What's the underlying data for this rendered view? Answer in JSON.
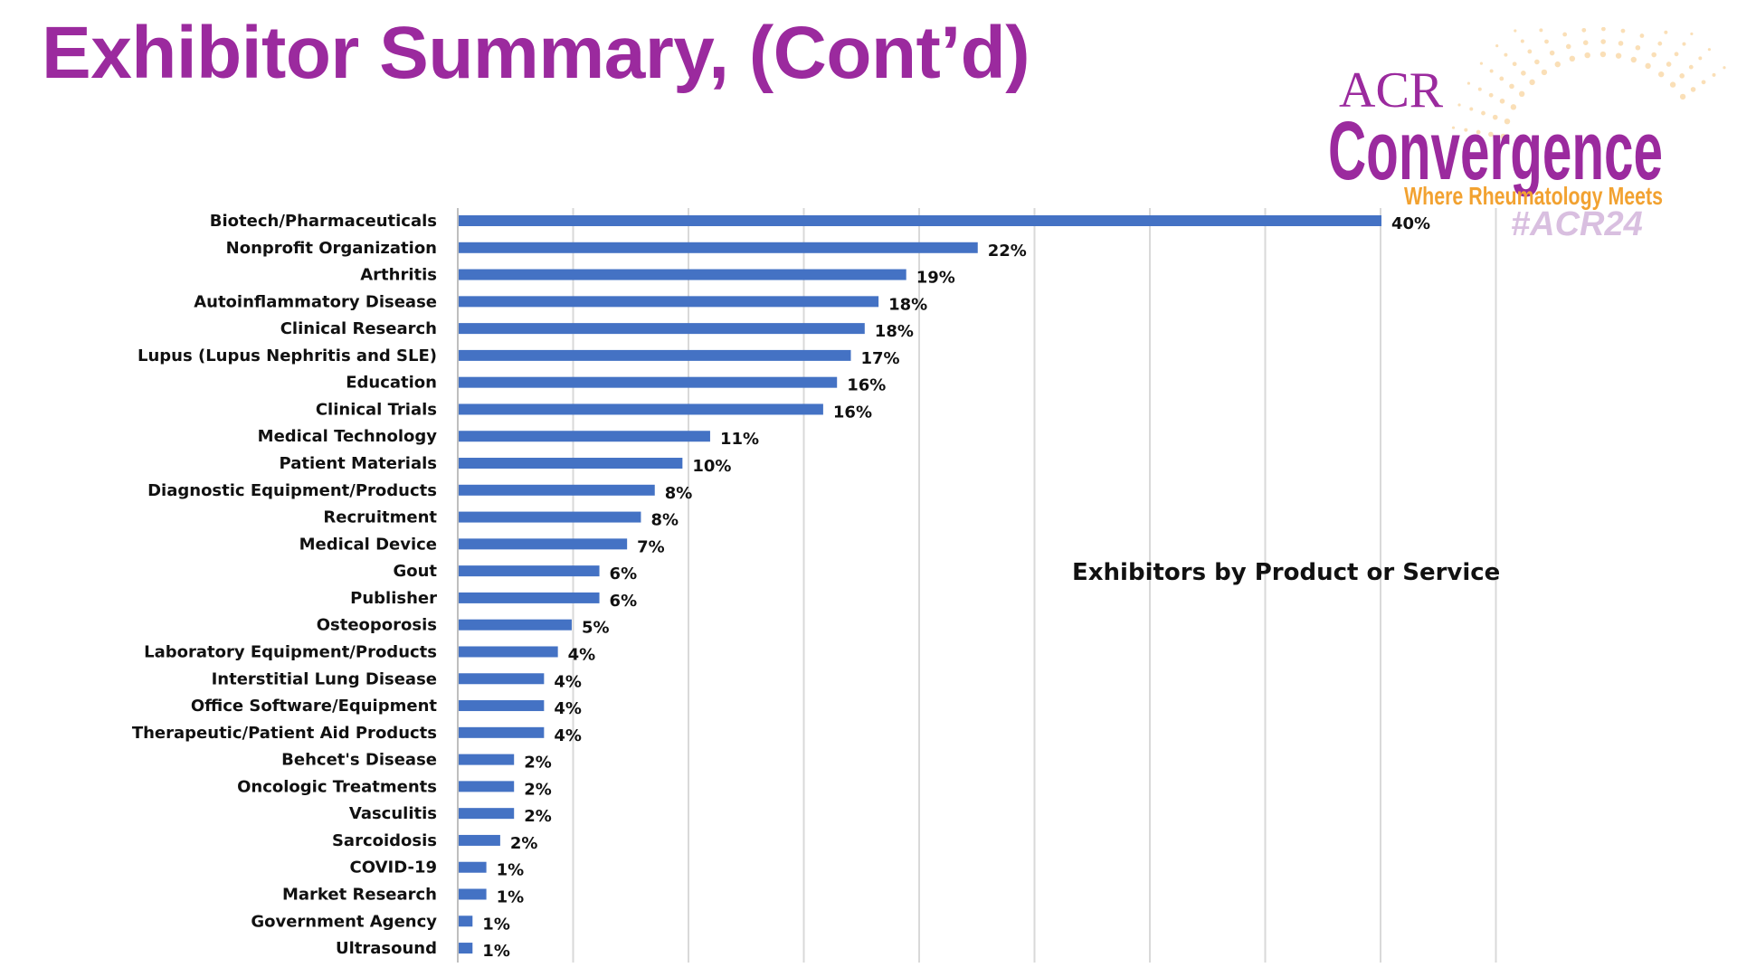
{
  "slide": {
    "title": "Exhibitor Summary, (Cont’d)"
  },
  "logo": {
    "line1": "ACR",
    "line2": "Convergence",
    "tagline": "Where Rheumatology Meets",
    "hashtag": "#ACR24",
    "colors": {
      "purple": "#9b2a9e",
      "orange": "#f2a231",
      "hashtag": "#e6d3ea"
    }
  },
  "chart_data": {
    "type": "bar",
    "orientation": "horizontal",
    "title": "Exhibitors by Product or Service",
    "unit": "%",
    "xlim": [
      0,
      45
    ],
    "grid": true,
    "bar_color": "#4472c4",
    "categories": [
      "Biotech/Pharmaceuticals",
      "Nonprofit Organization",
      "Arthritis",
      "Autoinflammatory Disease",
      "Clinical Research",
      "Lupus (Lupus Nephritis and SLE)",
      "Education",
      "Clinical Trials",
      "Medical Technology",
      "Patient Materials",
      "Diagnostic Equipment/Products",
      "Recruitment",
      "Medical Device",
      "Gout",
      "Publisher",
      "Osteoporosis",
      "Laboratory Equipment/Products",
      "Interstitial Lung Disease",
      "Office Software/Equipment",
      "Therapeutic/Patient Aid Products",
      "Behcet's Disease",
      "Oncologic Treatments",
      "Vasculitis",
      "Sarcoidosis",
      "COVID-19",
      "Market Research",
      "Government Agency",
      "Ultrasound"
    ],
    "values": [
      40,
      22.5,
      19.4,
      18.2,
      17.6,
      17,
      16.4,
      15.8,
      10.9,
      9.7,
      8.5,
      7.9,
      7.3,
      6.1,
      6.1,
      4.9,
      4.3,
      3.7,
      3.7,
      3.7,
      2.4,
      2.4,
      2.4,
      1.8,
      1.2,
      1.2,
      0.6,
      0.6
    ],
    "labels": [
      "40%",
      "22%",
      "19%",
      "18%",
      "18%",
      "17%",
      "16%",
      "16%",
      "11%",
      "10%",
      "8%",
      "8%",
      "7%",
      "6%",
      "6%",
      "5%",
      "4%",
      "4%",
      "4%",
      "4%",
      "2%",
      "2%",
      "2%",
      "2%",
      "1%",
      "1%",
      "1%",
      "1%"
    ]
  }
}
